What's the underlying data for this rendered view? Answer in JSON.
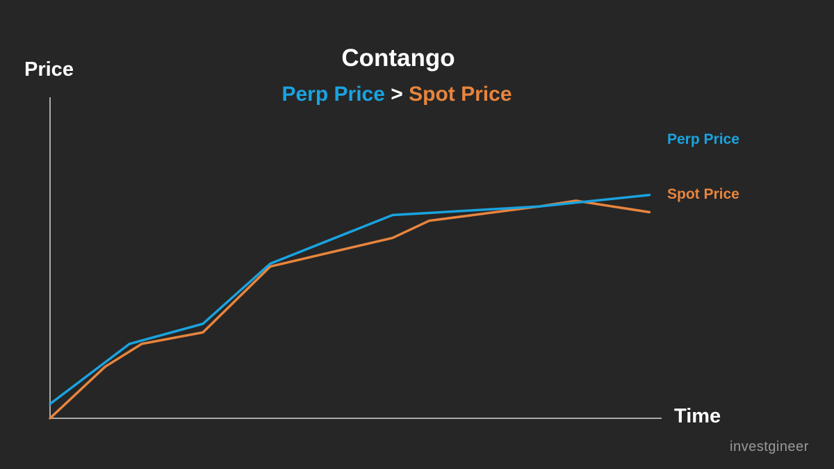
{
  "chart_data": {
    "type": "line",
    "title": "Contango",
    "subtitle": {
      "perp": "Perp Price",
      "operator": ">",
      "spot": "Spot Price"
    },
    "ylabel": "Price",
    "xlabel": "Time",
    "xlim": [
      0,
      100
    ],
    "ylim": [
      0,
      100
    ],
    "grid": false,
    "legend_placement": "right",
    "series": [
      {
        "name": "Perp Price",
        "color": "#1aa3e0",
        "x": [
          0,
          13,
          25,
          36,
          56,
          80,
          98
        ],
        "y": [
          5,
          26,
          33,
          54,
          71,
          74,
          78
        ]
      },
      {
        "name": "Spot Price",
        "color": "#e8853e",
        "x": [
          0,
          9,
          15,
          25,
          36,
          56,
          62,
          80,
          86,
          98
        ],
        "y": [
          0,
          18,
          26,
          30,
          53,
          63,
          69,
          74,
          76,
          72
        ]
      }
    ]
  },
  "watermark": "investgineer",
  "colors": {
    "background": "#262626",
    "axis": "#d9d9d9",
    "text": "#ffffff"
  }
}
